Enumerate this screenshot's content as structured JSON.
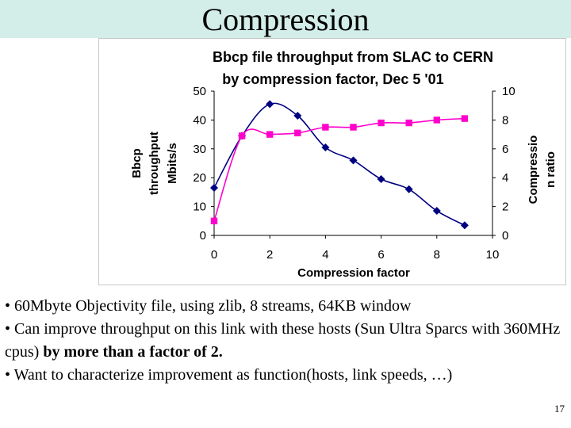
{
  "slide": {
    "title": "Compression",
    "page_number": "17"
  },
  "bullets": [
    {
      "parts": [
        {
          "text": "• 60Mbyte Objectivity file, using zlib, 8 streams, 64KB window",
          "bold": false
        }
      ]
    },
    {
      "parts": [
        {
          "text": "• Can improve throughput on this link with these hosts (Sun Ultra Sparcs with 360MHz cpus) ",
          "bold": false
        },
        {
          "text": "by more than a factor of 2.",
          "bold": true
        }
      ]
    },
    {
      "parts": [
        {
          "text": "• Want to characterize improvement as function(hosts, link speeds, …)",
          "bold": false
        }
      ]
    }
  ],
  "chart_data": {
    "type": "line",
    "title_line1": "Bbcp file throughput from SLAC to CERN",
    "title_line2": "by compression factor, Dec 5 '01",
    "xlabel": "Compression factor",
    "ylabel_left_line1": "Bbcp",
    "ylabel_left_line2": "throughput",
    "ylabel_left_line3": "Mbits/s",
    "ylabel_right_line1": "Compressio",
    "ylabel_right_line2": "n ratio",
    "xlim": [
      0,
      10
    ],
    "ylim_left": [
      0,
      50
    ],
    "ylim_right": [
      0,
      10
    ],
    "x_ticks": [
      "0",
      "2",
      "4",
      "6",
      "8",
      "10"
    ],
    "y_left_ticks": [
      "0",
      "10",
      "20",
      "30",
      "40",
      "50"
    ],
    "y_right_ticks": [
      "0",
      "2",
      "4",
      "6",
      "8",
      "10"
    ],
    "grid": false,
    "legend": "none",
    "series": [
      {
        "axis": "left",
        "color": "#000080",
        "marker": "diamond",
        "smooth": true,
        "x": [
          0,
          1,
          2,
          3,
          4,
          5,
          6,
          7,
          8,
          9
        ],
        "y": [
          16.5,
          34.5,
          45.5,
          41.5,
          30.5,
          26,
          19.5,
          16,
          8.5,
          3.5
        ]
      },
      {
        "axis": "right",
        "color": "#ff00cc",
        "marker": "square",
        "smooth": true,
        "x": [
          0,
          1,
          2,
          3,
          4,
          5,
          6,
          7,
          8,
          9
        ],
        "y": [
          1,
          6.9,
          7,
          7.1,
          7.5,
          7.5,
          7.8,
          7.8,
          8,
          8.1
        ]
      }
    ]
  }
}
